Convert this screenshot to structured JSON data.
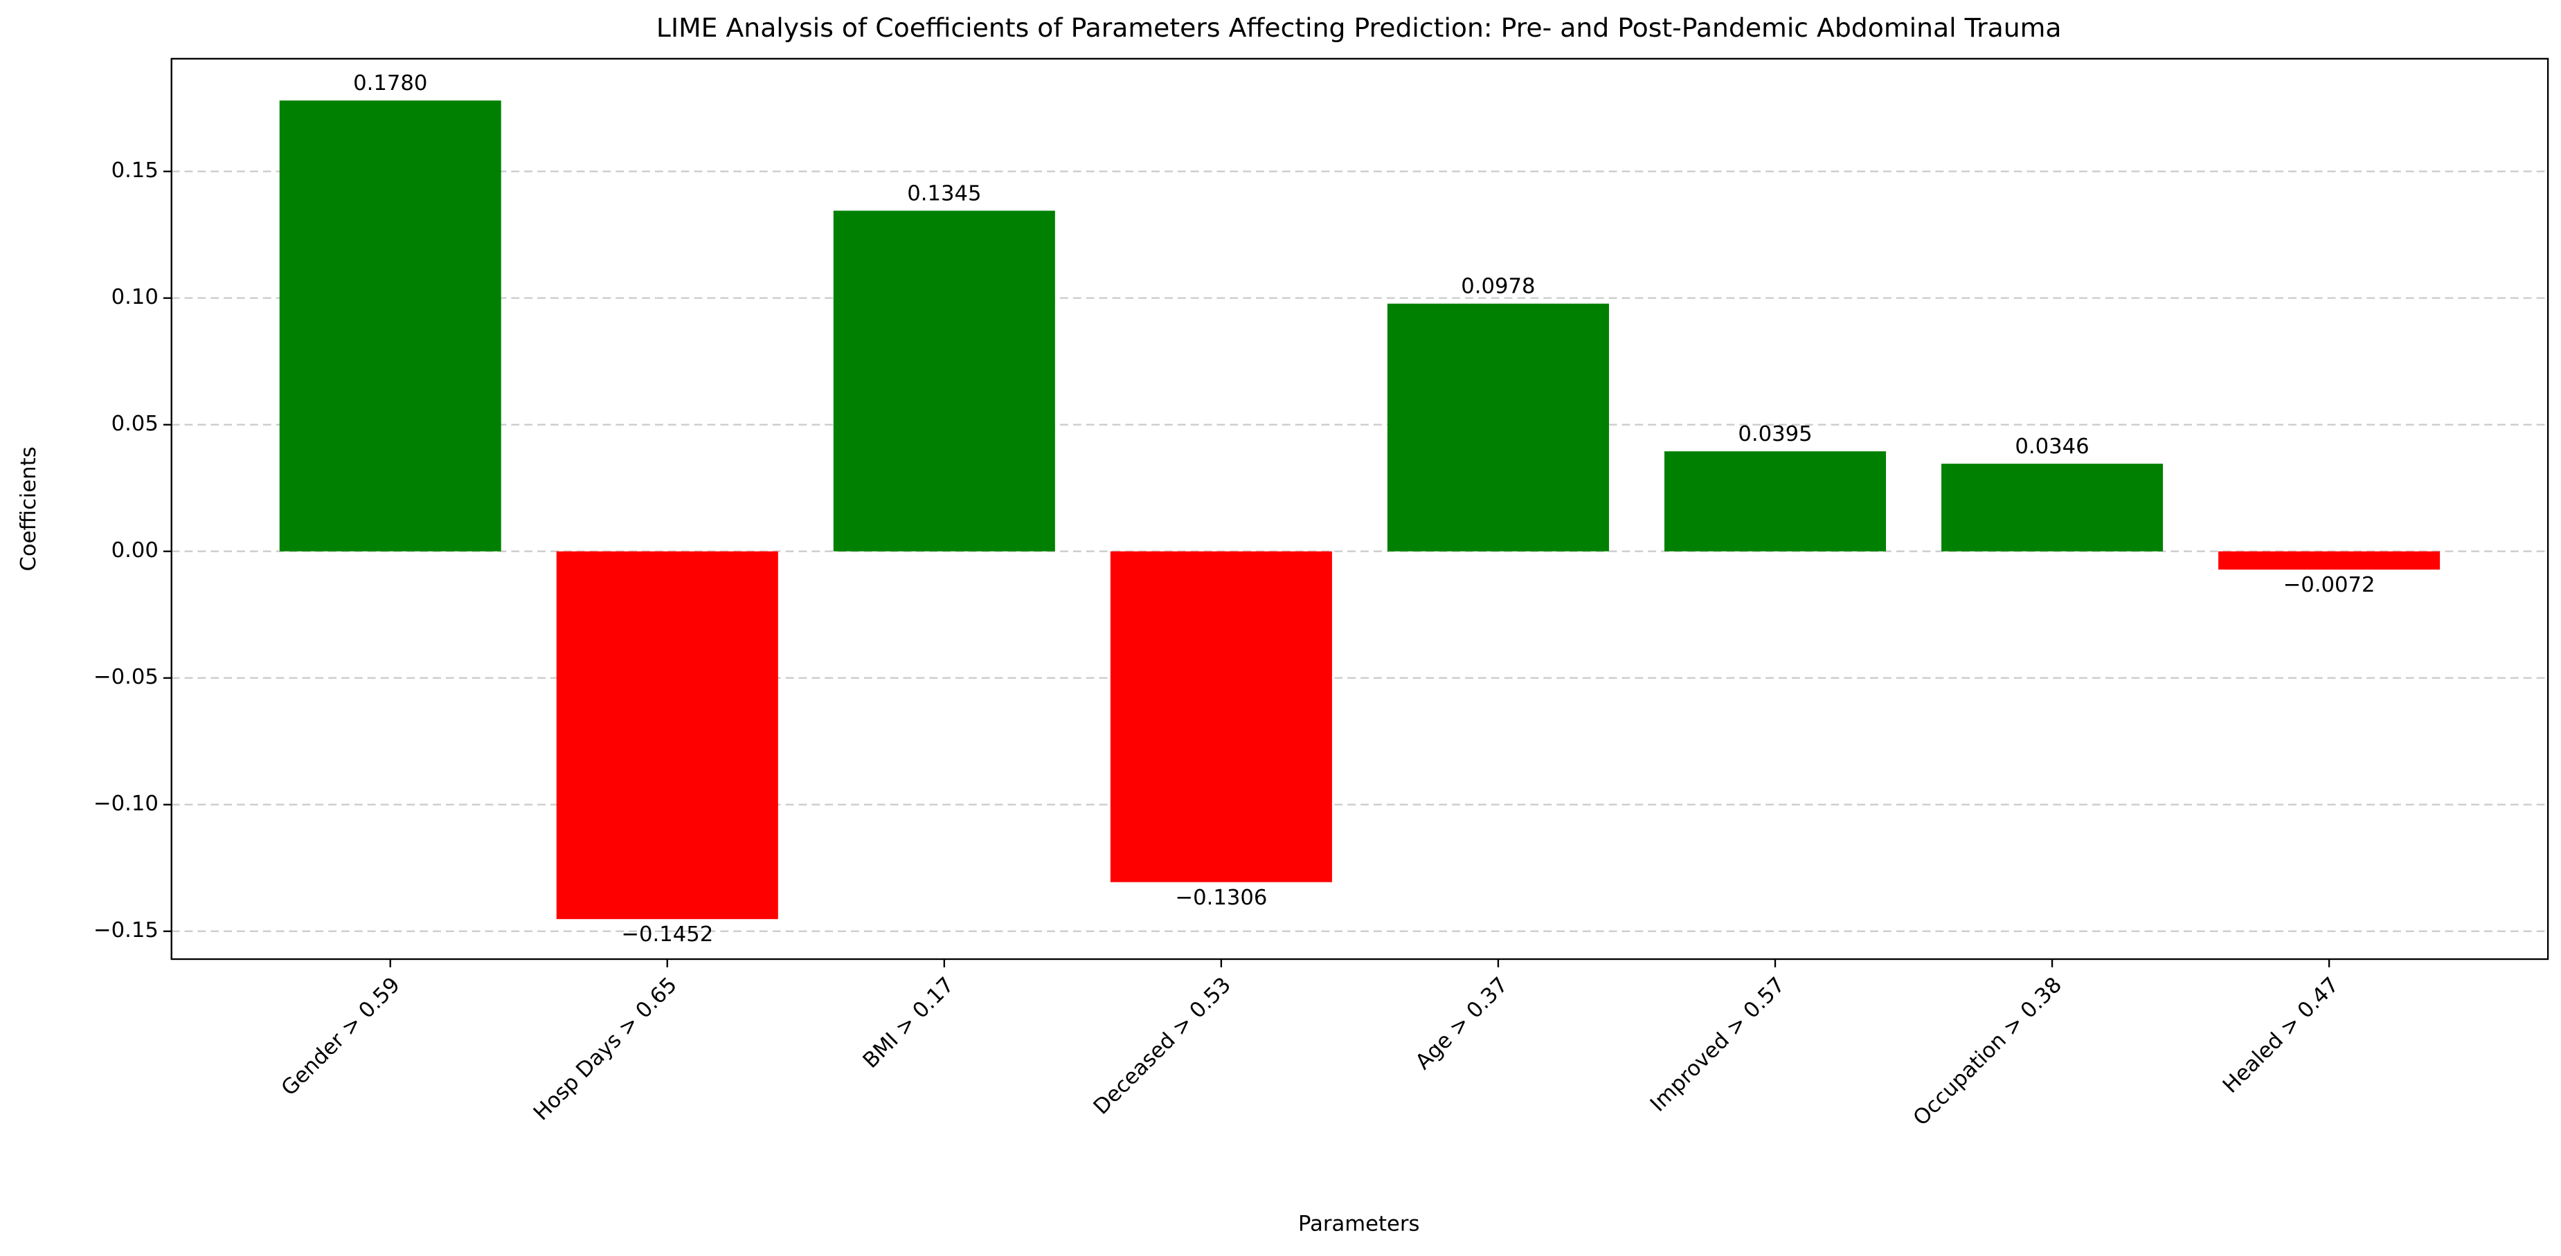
{
  "chart_data": {
    "type": "bar",
    "title": "LIME Analysis of Coefficients of Parameters Affecting Prediction: Pre- and Post-Pandemic Abdominal Trauma",
    "xlabel": "Parameters",
    "ylabel": "Coefficients",
    "categories": [
      "Gender > 0.59",
      "Hosp Days > 0.65",
      "BMI > 0.17",
      "Deceased > 0.53",
      "Age > 0.37",
      "Improved > 0.57",
      "Occupation > 0.38",
      "Healed > 0.47"
    ],
    "values": [
      0.178,
      -0.1452,
      0.1345,
      -0.1306,
      0.0978,
      0.0395,
      0.0346,
      -0.0072
    ],
    "value_labels": [
      "0.1780",
      "−0.1452",
      "0.1345",
      "−0.1306",
      "0.0978",
      "0.0395",
      "0.0346",
      "−0.0072"
    ],
    "colors": [
      "#008000",
      "#ff0000",
      "#008000",
      "#ff0000",
      "#008000",
      "#008000",
      "#008000",
      "#ff0000"
    ],
    "ylim": [
      -0.161,
      0.1945
    ],
    "yticks": [
      {
        "value": -0.15,
        "label": "−0.15"
      },
      {
        "value": -0.1,
        "label": "−0.10"
      },
      {
        "value": -0.05,
        "label": "−0.05"
      },
      {
        "value": 0,
        "label": "0.00"
      },
      {
        "value": 0.05,
        "label": "0.05"
      },
      {
        "value": 0.1,
        "label": "0.10"
      },
      {
        "value": 0.15,
        "label": "0.15"
      }
    ],
    "grid": true
  }
}
